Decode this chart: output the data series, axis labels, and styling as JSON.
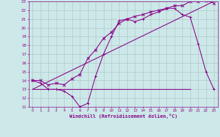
{
  "xlabel": "Windchill (Refroidissement éolien,°C)",
  "bg_color": "#cce8e8",
  "grid_color": "#b0c8c8",
  "line_color": "#880088",
  "xlim": [
    -0.5,
    23.5
  ],
  "ylim": [
    11,
    23
  ],
  "xticks": [
    0,
    1,
    2,
    3,
    4,
    5,
    6,
    7,
    8,
    9,
    10,
    11,
    12,
    13,
    14,
    15,
    16,
    17,
    18,
    19,
    20,
    21,
    22,
    23
  ],
  "yticks": [
    11,
    12,
    13,
    14,
    15,
    16,
    17,
    18,
    19,
    20,
    21,
    22,
    23
  ],
  "line1_x": [
    0,
    1,
    2,
    3,
    4,
    5,
    6,
    7,
    8,
    9,
    10,
    11,
    12,
    13,
    14,
    15,
    16,
    17,
    18,
    19,
    20,
    21,
    22,
    23
  ],
  "line1_y": [
    14.0,
    13.7,
    13.0,
    13.0,
    12.8,
    12.2,
    11.0,
    11.4,
    14.5,
    17.0,
    19.0,
    20.8,
    21.0,
    20.7,
    21.0,
    21.5,
    21.8,
    22.2,
    22.2,
    21.5,
    21.2,
    18.2,
    15.0,
    13.0
  ],
  "line2_x": [
    0,
    1,
    2,
    3,
    4,
    5,
    6,
    7,
    8,
    9,
    10,
    11,
    12,
    13,
    14,
    15,
    16,
    17,
    18,
    19,
    20,
    21,
    22,
    23
  ],
  "line2_y": [
    14.0,
    14.0,
    13.5,
    13.7,
    13.5,
    14.2,
    14.7,
    16.5,
    17.5,
    18.8,
    19.5,
    20.5,
    21.0,
    21.3,
    21.5,
    21.8,
    22.0,
    22.2,
    22.5,
    22.5,
    23.0,
    23.0,
    23.1,
    22.8
  ],
  "line3_x": [
    0,
    20
  ],
  "line3_y": [
    13,
    13
  ],
  "line4_x": [
    0,
    23
  ],
  "line4_y": [
    13,
    23
  ]
}
